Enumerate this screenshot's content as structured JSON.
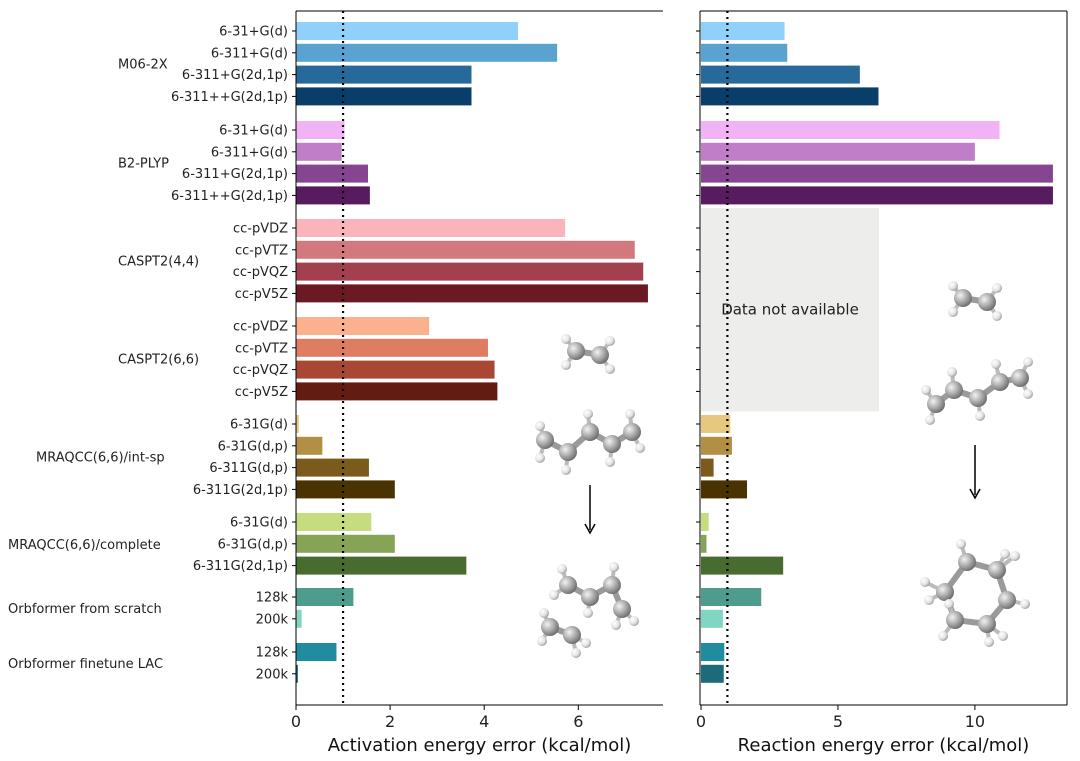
{
  "chart_data": [
    {
      "type": "bar",
      "orientation": "horizontal",
      "xlabel": "Activation energy error (kcal/mol)",
      "xlim": [
        0,
        7.8
      ],
      "xticks": [
        0,
        2,
        4,
        6
      ],
      "reference_line": 1,
      "groups": [
        {
          "name": "M06-2X",
          "bars": [
            {
              "label": "6-31+G(d)",
              "value": 4.72,
              "color": "#8fd1fa"
            },
            {
              "label": "6-311+G(d)",
              "value": 5.55,
              "color": "#5aa3d1"
            },
            {
              "label": "6-311+G(2d,1p)",
              "value": 3.73,
              "color": "#26699a"
            },
            {
              "label": "6-311++G(2d,1p)",
              "value": 3.73,
              "color": "#093d6a"
            }
          ]
        },
        {
          "name": "B2-PLYP",
          "bars": [
            {
              "label": "6-31+G(d)",
              "value": 1.03,
              "color": "#f1b2f6"
            },
            {
              "label": "6-311+G(d)",
              "value": 0.97,
              "color": "#c07dc8"
            },
            {
              "label": "6-311+G(2d,1p)",
              "value": 1.53,
              "color": "#864590"
            },
            {
              "label": "6-311++G(2d,1p)",
              "value": 1.57,
              "color": "#561c5e"
            }
          ]
        },
        {
          "name": "CASPT2(4,4)",
          "bars": [
            {
              "label": "cc-pVDZ",
              "value": 5.72,
              "color": "#fbb4bc"
            },
            {
              "label": "cc-pVTZ",
              "value": 7.2,
              "color": "#d2787f"
            },
            {
              "label": "cc-pVQZ",
              "value": 7.38,
              "color": "#a2404f"
            },
            {
              "label": "cc-pV5Z",
              "value": 7.48,
              "color": "#6b1a24"
            }
          ]
        },
        {
          "name": "CASPT2(6,6)",
          "bars": [
            {
              "label": "cc-pVDZ",
              "value": 2.83,
              "color": "#fbb08e"
            },
            {
              "label": "cc-pVTZ",
              "value": 4.08,
              "color": "#df7d62"
            },
            {
              "label": "cc-pVQZ",
              "value": 4.22,
              "color": "#a84734"
            },
            {
              "label": "cc-pV5Z",
              "value": 4.28,
              "color": "#621c12"
            }
          ]
        },
        {
          "name": "MRAQCC(6,6)/int-sp",
          "bars": [
            {
              "label": "6-31G(d)",
              "value": 0.06,
              "color": "#e6c97e"
            },
            {
              "label": "6-31G(d,p)",
              "value": 0.56,
              "color": "#b38f44"
            },
            {
              "label": "6-311G(d,p)",
              "value": 1.55,
              "color": "#7a5b1c"
            },
            {
              "label": "6-311G(2d,1p)",
              "value": 2.1,
              "color": "#4a3300"
            }
          ]
        },
        {
          "name": "MRAQCC(6,6)/complete",
          "bars": [
            {
              "label": "6-31G(d)",
              "value": 1.6,
              "color": "#c5dc7f"
            },
            {
              "label": "6-31G(d,p)",
              "value": 2.1,
              "color": "#86a455"
            },
            {
              "label": "6-311G(2d,1p)",
              "value": 3.62,
              "color": "#486b2f"
            }
          ]
        },
        {
          "name": "Orbformer from scratch",
          "bars": [
            {
              "label": "128k",
              "value": 1.22,
              "color": "#4e9c8c"
            },
            {
              "label": "200k",
              "value": 0.12,
              "color": "#7fd6c3"
            }
          ]
        },
        {
          "name": "Orbformer finetune LAC",
          "bars": [
            {
              "label": "128k",
              "value": 0.86,
              "color": "#1f8ca0"
            },
            {
              "label": "200k",
              "value": 0.04,
              "color": "#1d6b78"
            }
          ]
        }
      ]
    },
    {
      "type": "bar",
      "orientation": "horizontal",
      "xlabel": "Reaction energy error (kcal/mol)",
      "xlim": [
        0,
        13.4
      ],
      "xticks": [
        0,
        5,
        10
      ],
      "reference_line": 1,
      "unavailable_note": "Data not available",
      "groups": [
        {
          "name": "M06-2X",
          "values": [
            3.05,
            3.15,
            5.8,
            6.48
          ]
        },
        {
          "name": "B2-PLYP",
          "values": [
            10.9,
            10.0,
            12.85,
            12.85
          ]
        },
        {
          "name": "CASPT2(4,4)",
          "values": [
            null,
            null,
            null,
            null
          ]
        },
        {
          "name": "CASPT2(6,6)",
          "values": [
            null,
            null,
            null,
            null
          ]
        },
        {
          "name": "MRAQCC(6,6)/int-sp",
          "values": [
            1.07,
            1.13,
            0.46,
            1.68
          ]
        },
        {
          "name": "MRAQCC(6,6)/complete",
          "values": [
            0.28,
            0.2,
            3.0
          ]
        },
        {
          "name": "Orbformer from scratch",
          "values": [
            2.2,
            0.8
          ]
        },
        {
          "name": "Orbformer finetune LAC",
          "values": [
            0.85,
            0.83
          ]
        }
      ]
    }
  ]
}
